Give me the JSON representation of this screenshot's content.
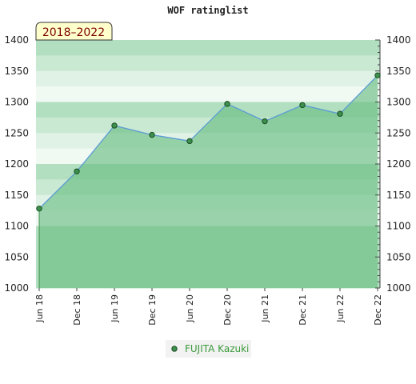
{
  "chart_data": {
    "type": "area",
    "title": "WOF ratinglist",
    "period_label": "2018–2022",
    "categories": [
      "Jun 18",
      "Dec 18",
      "Jun 19",
      "Dec 19",
      "Jun 20",
      "Dec 20",
      "Jun 21",
      "Dec 21",
      "Jun 22",
      "Dec 22"
    ],
    "series": [
      {
        "name": "FUJITA Kazuki",
        "values": [
          1128,
          1188,
          1262,
          1247,
          1237,
          1297,
          1269,
          1295,
          1281,
          1343
        ]
      }
    ],
    "ylim": [
      1000,
      1400
    ],
    "yticks": [
      1000,
      1050,
      1100,
      1150,
      1200,
      1250,
      1300,
      1350,
      1400
    ],
    "xlabel": "",
    "ylabel": "",
    "grid": true,
    "legend_position": "bottom-center",
    "colors": {
      "line": "#5b9bd5",
      "area": "#6cbf84",
      "marker": "#3d8f4d",
      "badge_bg": "#ffffcc",
      "badge_text": "#7a0000",
      "legend_text": "#3a9a3a"
    }
  }
}
